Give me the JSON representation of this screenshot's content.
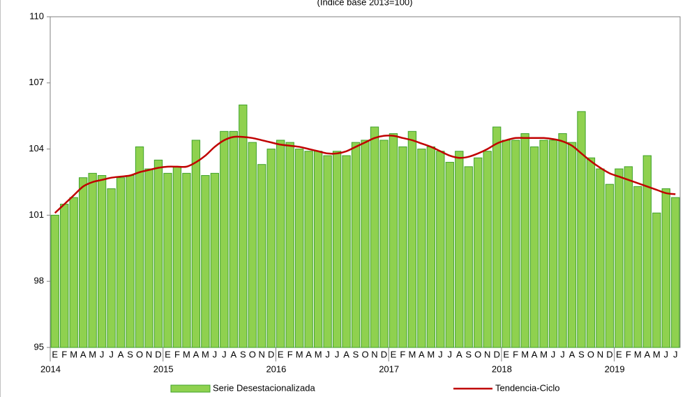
{
  "chart_data": {
    "type": "bar+line",
    "subtitle": "(Índice base 2013=100)",
    "categories": [
      "E",
      "F",
      "M",
      "A",
      "M",
      "J",
      "J",
      "A",
      "S",
      "O",
      "N",
      "D",
      "E",
      "F",
      "M",
      "A",
      "M",
      "J",
      "J",
      "A",
      "S",
      "O",
      "N",
      "D",
      "E",
      "F",
      "M",
      "A",
      "M",
      "J",
      "J",
      "A",
      "S",
      "O",
      "N",
      "D",
      "E",
      "F",
      "M",
      "A",
      "M",
      "J",
      "J",
      "A",
      "S",
      "O",
      "N",
      "D",
      "E",
      "F",
      "M",
      "A",
      "M",
      "J",
      "J",
      "A",
      "S",
      "O",
      "N",
      "D",
      "E",
      "F",
      "M",
      "A",
      "M",
      "J",
      "J"
    ],
    "year_labels": [
      "2014",
      "2015",
      "2016",
      "2017",
      "2018",
      "2019"
    ],
    "series": [
      {
        "name": "Serie Desestacionalizada",
        "kind": "bar",
        "color": "#8fd14f",
        "values": [
          101.0,
          101.5,
          101.8,
          102.7,
          102.9,
          102.8,
          102.2,
          102.7,
          102.8,
          104.1,
          103.1,
          103.5,
          102.9,
          103.2,
          102.9,
          104.4,
          102.8,
          102.9,
          104.8,
          104.8,
          106.0,
          104.3,
          103.3,
          104.0,
          104.4,
          104.3,
          104.0,
          103.9,
          103.9,
          103.7,
          103.9,
          103.7,
          104.3,
          104.4,
          105.0,
          104.4,
          104.7,
          104.1,
          104.8,
          104.0,
          104.1,
          103.9,
          103.4,
          103.9,
          103.2,
          103.6,
          103.9,
          105.0,
          104.4,
          104.4,
          104.7,
          104.1,
          104.4,
          104.4,
          104.7,
          104.3,
          105.7,
          103.6,
          103.1,
          102.4,
          103.1,
          103.2,
          102.3,
          103.7,
          101.1,
          102.2,
          101.8
        ]
      },
      {
        "name": "Tendencia-Ciclo",
        "kind": "line",
        "color": "#c00000",
        "values": [
          101.1,
          101.5,
          101.9,
          102.3,
          102.5,
          102.6,
          102.7,
          102.75,
          102.8,
          102.95,
          103.05,
          103.15,
          103.2,
          103.2,
          103.2,
          103.4,
          103.7,
          104.1,
          104.4,
          104.55,
          104.55,
          104.5,
          104.4,
          104.3,
          104.2,
          104.15,
          104.1,
          104.0,
          103.9,
          103.8,
          103.8,
          103.9,
          104.1,
          104.3,
          104.5,
          104.6,
          104.6,
          104.5,
          104.4,
          104.25,
          104.1,
          103.9,
          103.7,
          103.6,
          103.65,
          103.8,
          104.0,
          104.25,
          104.4,
          104.5,
          104.5,
          104.5,
          104.5,
          104.45,
          104.35,
          104.15,
          103.8,
          103.45,
          103.15,
          102.9,
          102.75,
          102.6,
          102.45,
          102.3,
          102.15,
          102.0,
          101.95
        ]
      }
    ],
    "ylim": [
      95,
      110
    ],
    "yticks": [
      95,
      98,
      101,
      104,
      107,
      110
    ],
    "grid": false,
    "legend": "bottom"
  }
}
